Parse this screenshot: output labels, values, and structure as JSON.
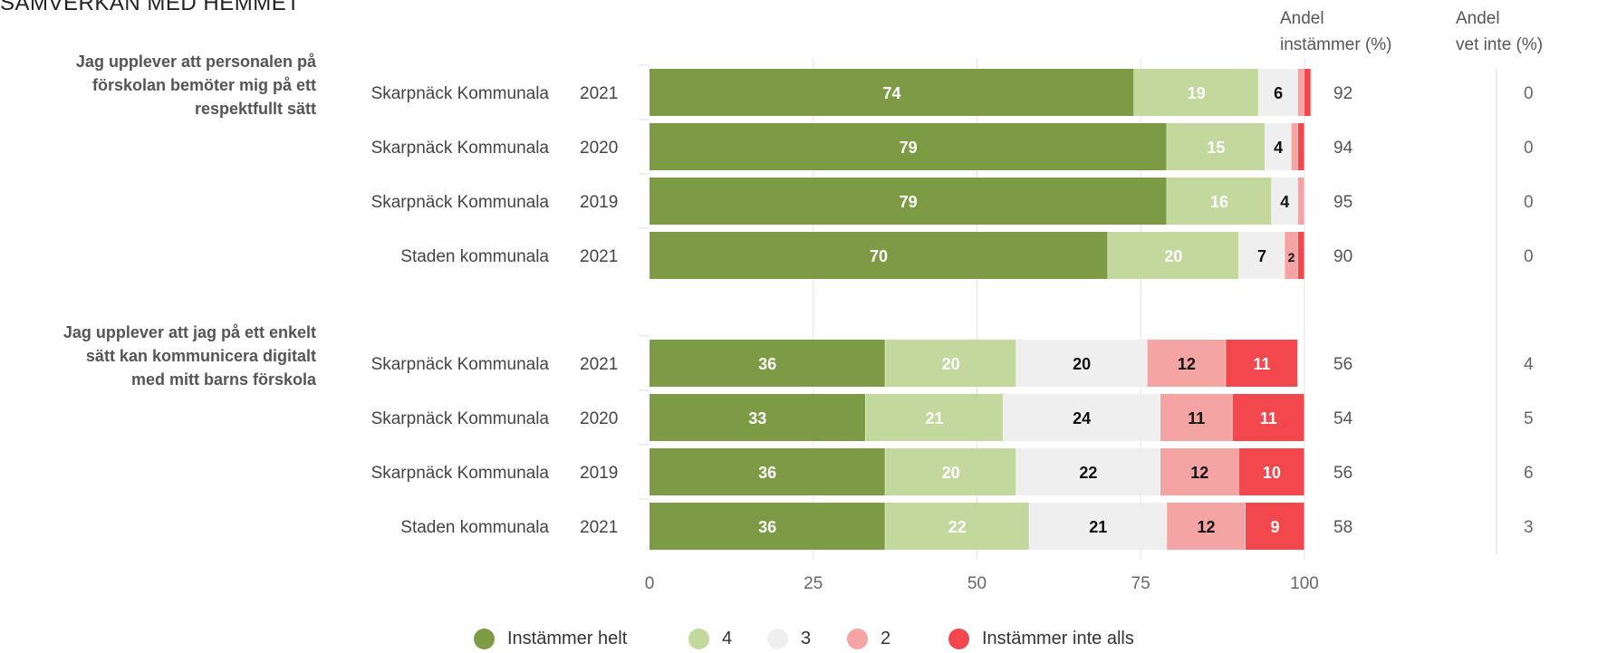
{
  "title": "SAMVERKAN MED HEMMET",
  "columns": {
    "instammer": [
      "Andel",
      "instämmer (%)"
    ],
    "vet_inte": [
      "Andel",
      "vet inte (%)"
    ]
  },
  "legend": [
    {
      "label": "Instämmer helt",
      "color": "#7d9a44"
    },
    {
      "label": "4",
      "color": "#c2d89d"
    },
    {
      "label": "3",
      "color": "#efefef"
    },
    {
      "label": "2",
      "color": "#f5a4a4"
    },
    {
      "label": "Instämmer inte alls",
      "color": "#f1474d"
    }
  ],
  "chart_data": {
    "type": "bar",
    "orientation": "horizontal",
    "stacked": true,
    "xlim": [
      0,
      100
    ],
    "xticks": [
      0,
      25,
      50,
      75,
      100
    ],
    "groups": [
      {
        "question": "Jag upplever att personalen på förskolan bemöter mig på ett respektfullt sätt",
        "question_lines": [
          "Jag upplever att personalen på",
          "förskolan bemöter mig på ett",
          "respektfullt sätt"
        ],
        "rows": [
          {
            "unit": "Skarpnäck Kommunala",
            "year": "2021",
            "values": [
              74,
              19,
              6,
              1,
              1
            ],
            "andel_instammer": "92",
            "andel_vet_inte": "0"
          },
          {
            "unit": "Skarpnäck Kommunala",
            "year": "2020",
            "values": [
              79,
              15,
              4,
              1,
              1
            ],
            "andel_instammer": "94",
            "andel_vet_inte": "0"
          },
          {
            "unit": "Skarpnäck Kommunala",
            "year": "2019",
            "values": [
              79,
              16,
              4,
              1,
              0
            ],
            "andel_instammer": "95",
            "andel_vet_inte": "0"
          },
          {
            "unit": "Staden kommunala",
            "year": "2021",
            "values": [
              70,
              20,
              7,
              2,
              1
            ],
            "andel_instammer": "90",
            "andel_vet_inte": "0"
          }
        ]
      },
      {
        "question": "Jag upplever att jag på ett enkelt sätt kan kommunicera digitalt med mitt barns förskola",
        "question_lines": [
          "Jag upplever att jag på ett enkelt",
          "sätt kan kommunicera digitalt",
          "med mitt barns förskola"
        ],
        "rows": [
          {
            "unit": "Skarpnäck Kommunala",
            "year": "2021",
            "values": [
              36,
              20,
              20,
              12,
              11
            ],
            "andel_instammer": "56",
            "andel_vet_inte": "4"
          },
          {
            "unit": "Skarpnäck Kommunala",
            "year": "2020",
            "values": [
              33,
              21,
              24,
              11,
              11
            ],
            "andel_instammer": "54",
            "andel_vet_inte": "5"
          },
          {
            "unit": "Skarpnäck Kommunala",
            "year": "2019",
            "values": [
              36,
              20,
              22,
              12,
              10
            ],
            "andel_instammer": "56",
            "andel_vet_inte": "6"
          },
          {
            "unit": "Staden kommunala",
            "year": "2021",
            "values": [
              36,
              22,
              21,
              12,
              9
            ],
            "andel_instammer": "58",
            "andel_vet_inte": "3"
          }
        ]
      }
    ]
  }
}
